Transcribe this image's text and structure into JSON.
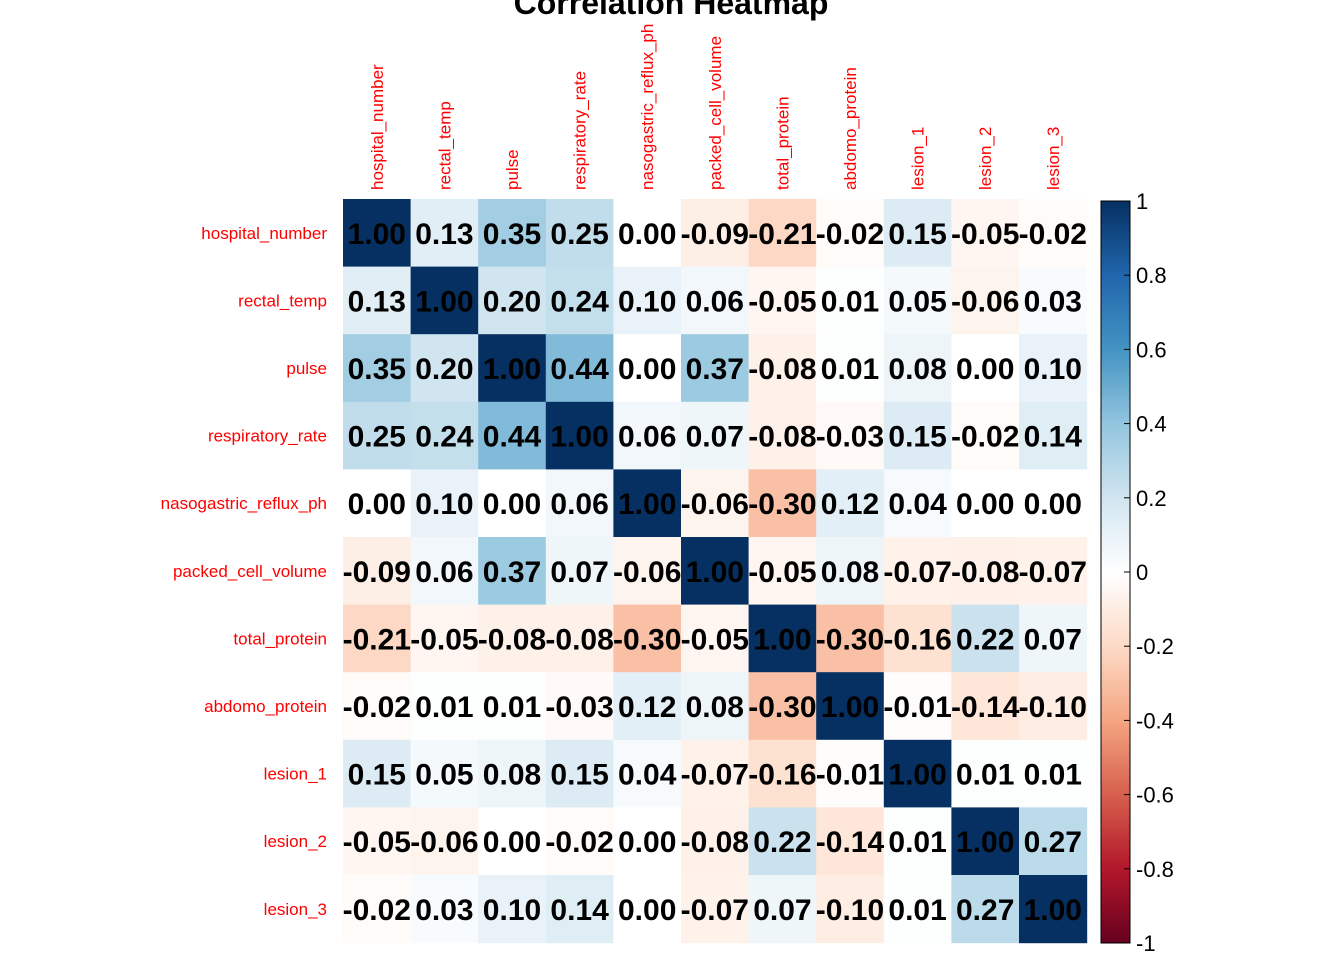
{
  "chart_data": {
    "type": "heatmap",
    "title": "Correlation Heatmap",
    "variables": [
      "hospital_number",
      "rectal_temp",
      "pulse",
      "respiratory_rate",
      "nasogastric_reflux_ph",
      "packed_cell_volume",
      "total_protein",
      "abdomo_protein",
      "lesion_1",
      "lesion_2",
      "lesion_3"
    ],
    "matrix": [
      [
        1.0,
        0.13,
        0.35,
        0.25,
        0.0,
        -0.09,
        -0.21,
        -0.02,
        0.15,
        -0.05,
        -0.02
      ],
      [
        0.13,
        1.0,
        0.2,
        0.24,
        0.1,
        0.06,
        -0.05,
        0.01,
        0.05,
        -0.06,
        0.03
      ],
      [
        0.35,
        0.2,
        1.0,
        0.44,
        0.0,
        0.37,
        -0.08,
        0.01,
        0.08,
        0.0,
        0.1
      ],
      [
        0.25,
        0.24,
        0.44,
        1.0,
        0.06,
        0.07,
        -0.08,
        -0.03,
        0.15,
        -0.02,
        0.14
      ],
      [
        0.0,
        0.1,
        0.0,
        0.06,
        1.0,
        -0.06,
        -0.3,
        0.12,
        0.04,
        0.0,
        0.0
      ],
      [
        -0.09,
        0.06,
        0.37,
        0.07,
        -0.06,
        1.0,
        -0.05,
        0.08,
        -0.07,
        -0.08,
        -0.07
      ],
      [
        -0.21,
        -0.05,
        -0.08,
        -0.08,
        -0.3,
        -0.05,
        1.0,
        -0.3,
        -0.16,
        0.22,
        0.07
      ],
      [
        -0.02,
        0.01,
        0.01,
        -0.03,
        0.12,
        0.08,
        -0.3,
        1.0,
        -0.01,
        -0.14,
        -0.1
      ],
      [
        0.15,
        0.05,
        0.08,
        0.15,
        0.04,
        -0.07,
        -0.16,
        -0.01,
        1.0,
        0.01,
        0.01
      ],
      [
        -0.05,
        -0.06,
        0.0,
        -0.02,
        0.0,
        -0.08,
        0.22,
        -0.14,
        0.01,
        1.0,
        0.27
      ],
      [
        -0.02,
        0.03,
        0.1,
        0.14,
        0.0,
        -0.07,
        0.07,
        -0.1,
        0.01,
        0.27,
        1.0
      ]
    ],
    "value_range": [
      -1,
      1
    ],
    "colorbar_ticks": [
      "1",
      "0.8",
      "0.6",
      "0.4",
      "0.2",
      "0",
      "-0.2",
      "-0.4",
      "-0.6",
      "-0.8",
      "-1"
    ],
    "colorbar_tick_values": [
      1,
      0.8,
      0.6,
      0.4,
      0.2,
      0,
      -0.2,
      -0.4,
      -0.6,
      -0.8,
      -1
    ],
    "colorscale": [
      "#67001F",
      "#B2182B",
      "#D6604D",
      "#F4A582",
      "#FDDBC7",
      "#FFFFFF",
      "#D1E5F0",
      "#92C5DE",
      "#4393C3",
      "#2166AC",
      "#053061"
    ],
    "label_color": "#FF0000",
    "value_format": "2 decimals",
    "legend_position": "right"
  }
}
